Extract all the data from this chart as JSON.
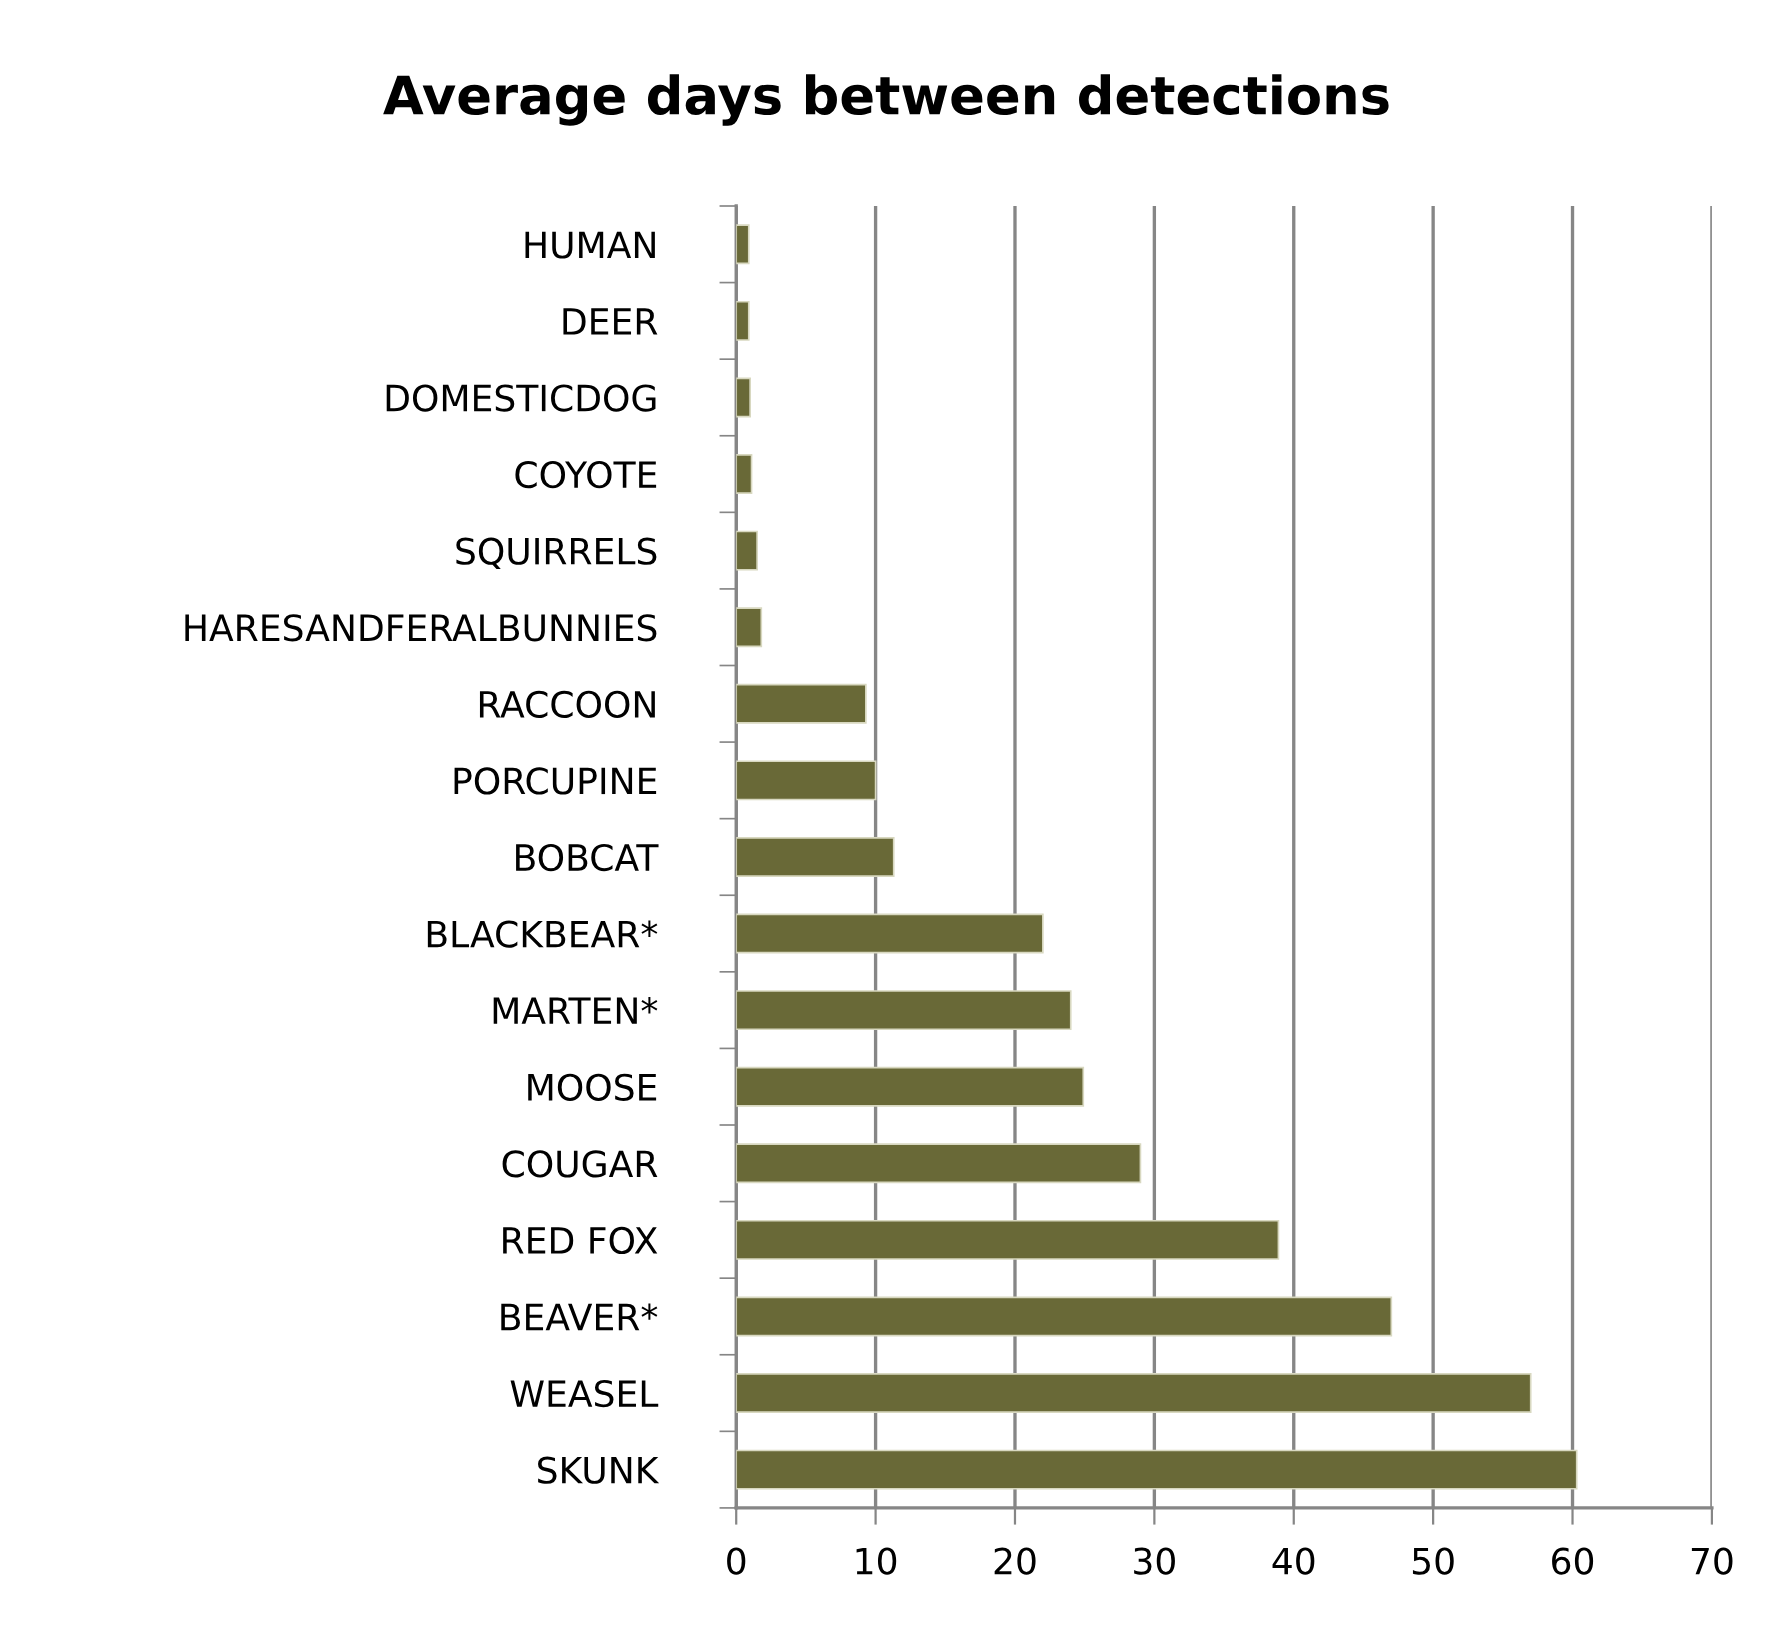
{
  "chart_data": {
    "type": "bar",
    "orientation": "horizontal",
    "title": "Average days between detections",
    "categories": [
      "HUMAN",
      "DEER",
      "DOMESTICDOG",
      "COYOTE",
      "SQUIRRELS",
      "HARESANDFERALBUNNIES",
      "RACCOON",
      "PORCUPINE",
      "BOBCAT",
      "BLACKBEAR*",
      "MARTEN*",
      "MOOSE",
      "COUGAR",
      "RED FOX",
      "BEAVER*",
      "WEASEL",
      "SKUNK"
    ],
    "values": [
      0.9,
      0.9,
      1.0,
      1.1,
      1.5,
      1.8,
      9.3,
      10.0,
      11.3,
      22.0,
      24.0,
      24.9,
      29.0,
      38.9,
      47.0,
      57.0,
      60.3
    ],
    "color": "#696937",
    "xlim": [
      0,
      70
    ],
    "xticks": [
      0,
      10,
      20,
      30,
      40,
      50,
      60,
      70
    ],
    "grid": "x",
    "legend": false
  }
}
